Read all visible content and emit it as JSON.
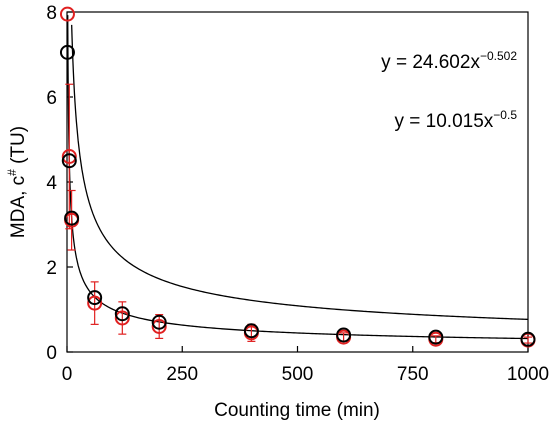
{
  "chart_data": {
    "type": "scatter",
    "xlabel": "Counting time (min)",
    "ylabel_main": "MDA, c",
    "ylabel_sup": "#",
    "ylabel_unit": " (TU)",
    "xlim": [
      0,
      1000
    ],
    "ylim": [
      0,
      8
    ],
    "xticks": [
      0,
      250,
      500,
      750,
      1000
    ],
    "xtick_labels": [
      "0",
      "250",
      "500",
      "750",
      "1000"
    ],
    "yticks": [
      0,
      2,
      4,
      6,
      8
    ],
    "ytick_labels": [
      "0",
      "2",
      "4",
      "6",
      "8"
    ],
    "grid": false,
    "series": [
      {
        "color": "#e02020",
        "marker": "circle",
        "x": [
          1,
          5,
          10,
          60,
          120,
          200,
          400,
          600,
          800,
          1000
        ],
        "y": [
          7.95,
          4.6,
          3.1,
          1.15,
          0.8,
          0.6,
          0.45,
          0.35,
          0.3,
          0.28
        ],
        "err": [
          0.0,
          1.7,
          0.7,
          0.5,
          0.38,
          0.28,
          0.2,
          0.1,
          0.08,
          0.07
        ],
        "fit": {
          "a": 24.602,
          "b": -0.502
        }
      },
      {
        "color": "#000000",
        "marker": "circle",
        "x": [
          1,
          5,
          10,
          60,
          120,
          200,
          400,
          600,
          800,
          1000
        ],
        "y": [
          7.05,
          4.5,
          3.15,
          1.28,
          0.9,
          0.7,
          0.5,
          0.4,
          0.35,
          0.3
        ],
        "err": [],
        "fit": {
          "a": 10.015,
          "b": -0.5
        }
      }
    ],
    "annotations": [
      {
        "base": "y = 24.602x",
        "exp": "−0.502"
      },
      {
        "base": "y = 10.015x",
        "exp": "−0.5"
      }
    ]
  }
}
